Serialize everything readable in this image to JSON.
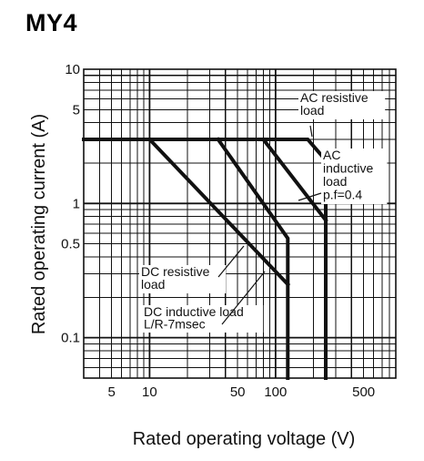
{
  "title": "MY4",
  "chart_data": {
    "type": "line",
    "title": "MY4",
    "xlabel": "Rated operating voltage (V)",
    "ylabel": "Rated operating current (A)",
    "xscale": "log",
    "yscale": "log",
    "xlim": [
      3,
      900
    ],
    "ylim": [
      0.05,
      10
    ],
    "grid": true,
    "x_ticks": [
      {
        "value": 5,
        "label": "5"
      },
      {
        "value": 10,
        "label": "10"
      },
      {
        "value": 50,
        "label": "50"
      },
      {
        "value": 100,
        "label": "100"
      },
      {
        "value": 500,
        "label": "500"
      }
    ],
    "y_ticks": [
      {
        "value": 10,
        "label": "10"
      },
      {
        "value": 5,
        "label": "5"
      },
      {
        "value": 1,
        "label": "1"
      },
      {
        "value": 0.5,
        "label": "0.5"
      },
      {
        "value": 0.1,
        "label": "0.1"
      }
    ],
    "series": [
      {
        "name": "AC resistive load",
        "x": [
          3,
          180,
          250,
          250
        ],
        "y": [
          3,
          3,
          2.1,
          0.05
        ]
      },
      {
        "name": "AC inductive load p.f=0.4",
        "x": [
          80,
          250
        ],
        "y": [
          3,
          0.75
        ]
      },
      {
        "name": "DC resistive load",
        "x": [
          35,
          125,
          125
        ],
        "y": [
          3,
          0.55,
          0.05
        ]
      },
      {
        "name": "DC inductive load L/R-7msec",
        "x": [
          10,
          125
        ],
        "y": [
          3,
          0.25
        ]
      }
    ],
    "annotations": [
      {
        "lines": [
          "AC resistive",
          "load"
        ]
      },
      {
        "lines": [
          "AC",
          "inductive",
          "load",
          "p.f=0.4"
        ]
      },
      {
        "lines": [
          "DC resistive",
          "load"
        ]
      },
      {
        "lines": [
          "DC inductive load",
          "L/R-7msec"
        ]
      }
    ]
  }
}
